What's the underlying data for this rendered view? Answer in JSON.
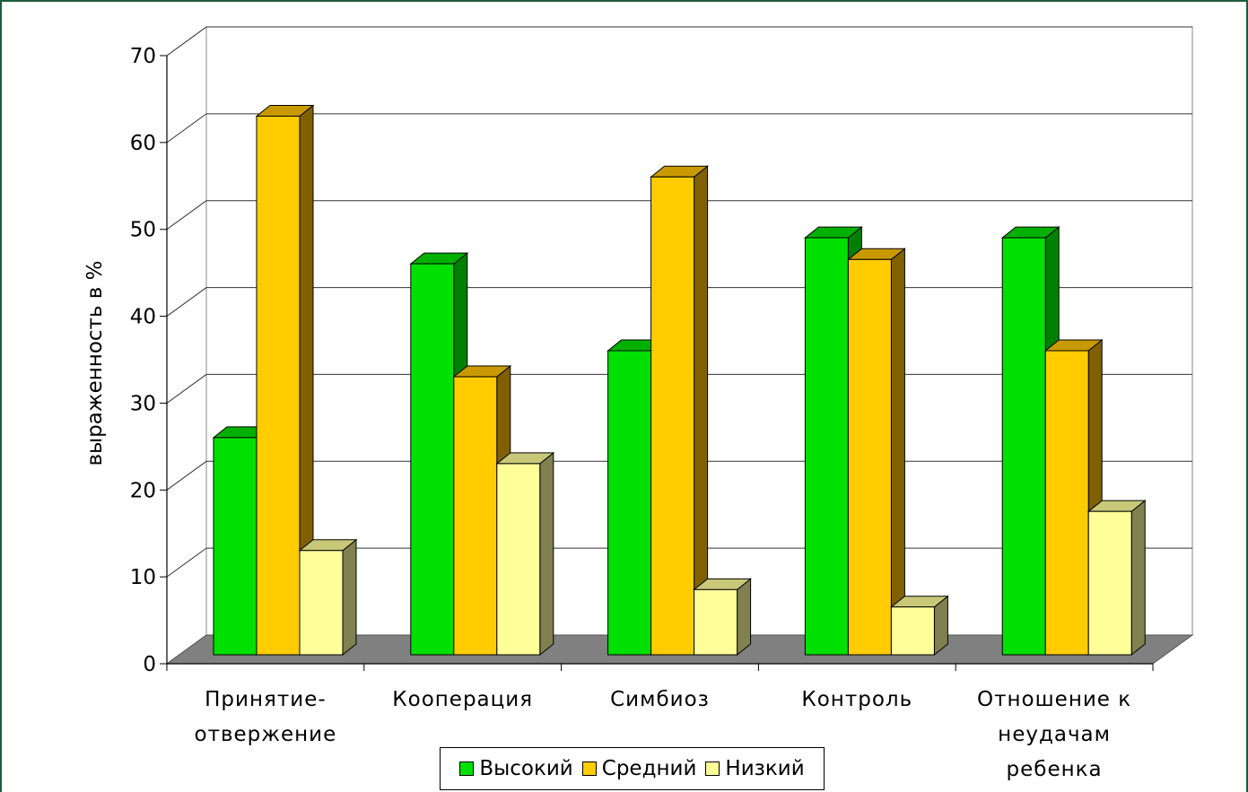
{
  "chart_data": {
    "type": "bar",
    "ylabel": "выраженность в %",
    "ylim": [
      0,
      70
    ],
    "yticks": [
      "0",
      "10",
      "20",
      "30",
      "40",
      "50",
      "60",
      "70"
    ],
    "categories": [
      [
        "Принятие-",
        "отвержение"
      ],
      [
        "Кооперация"
      ],
      [
        "Симбиоз"
      ],
      [
        "Контроль"
      ],
      [
        "Отношение к",
        "неудачам",
        "ребенка"
      ]
    ],
    "series": [
      {
        "name": "Высокий",
        "color": "#00e000",
        "side": "#008000",
        "top": "#00b000",
        "values": [
          25,
          45,
          35,
          48,
          48
        ]
      },
      {
        "name": "Средний",
        "color": "#ffcc00",
        "side": "#806000",
        "top": "#c99a00",
        "values": [
          62,
          32,
          55,
          45.5,
          35
        ]
      },
      {
        "name": "Низкий",
        "color": "#ffff99",
        "side": "#808050",
        "top": "#c8c878",
        "values": [
          12,
          22,
          7.5,
          5.5,
          16.5
        ]
      }
    ],
    "grid": true,
    "legend_position": "bottom"
  }
}
